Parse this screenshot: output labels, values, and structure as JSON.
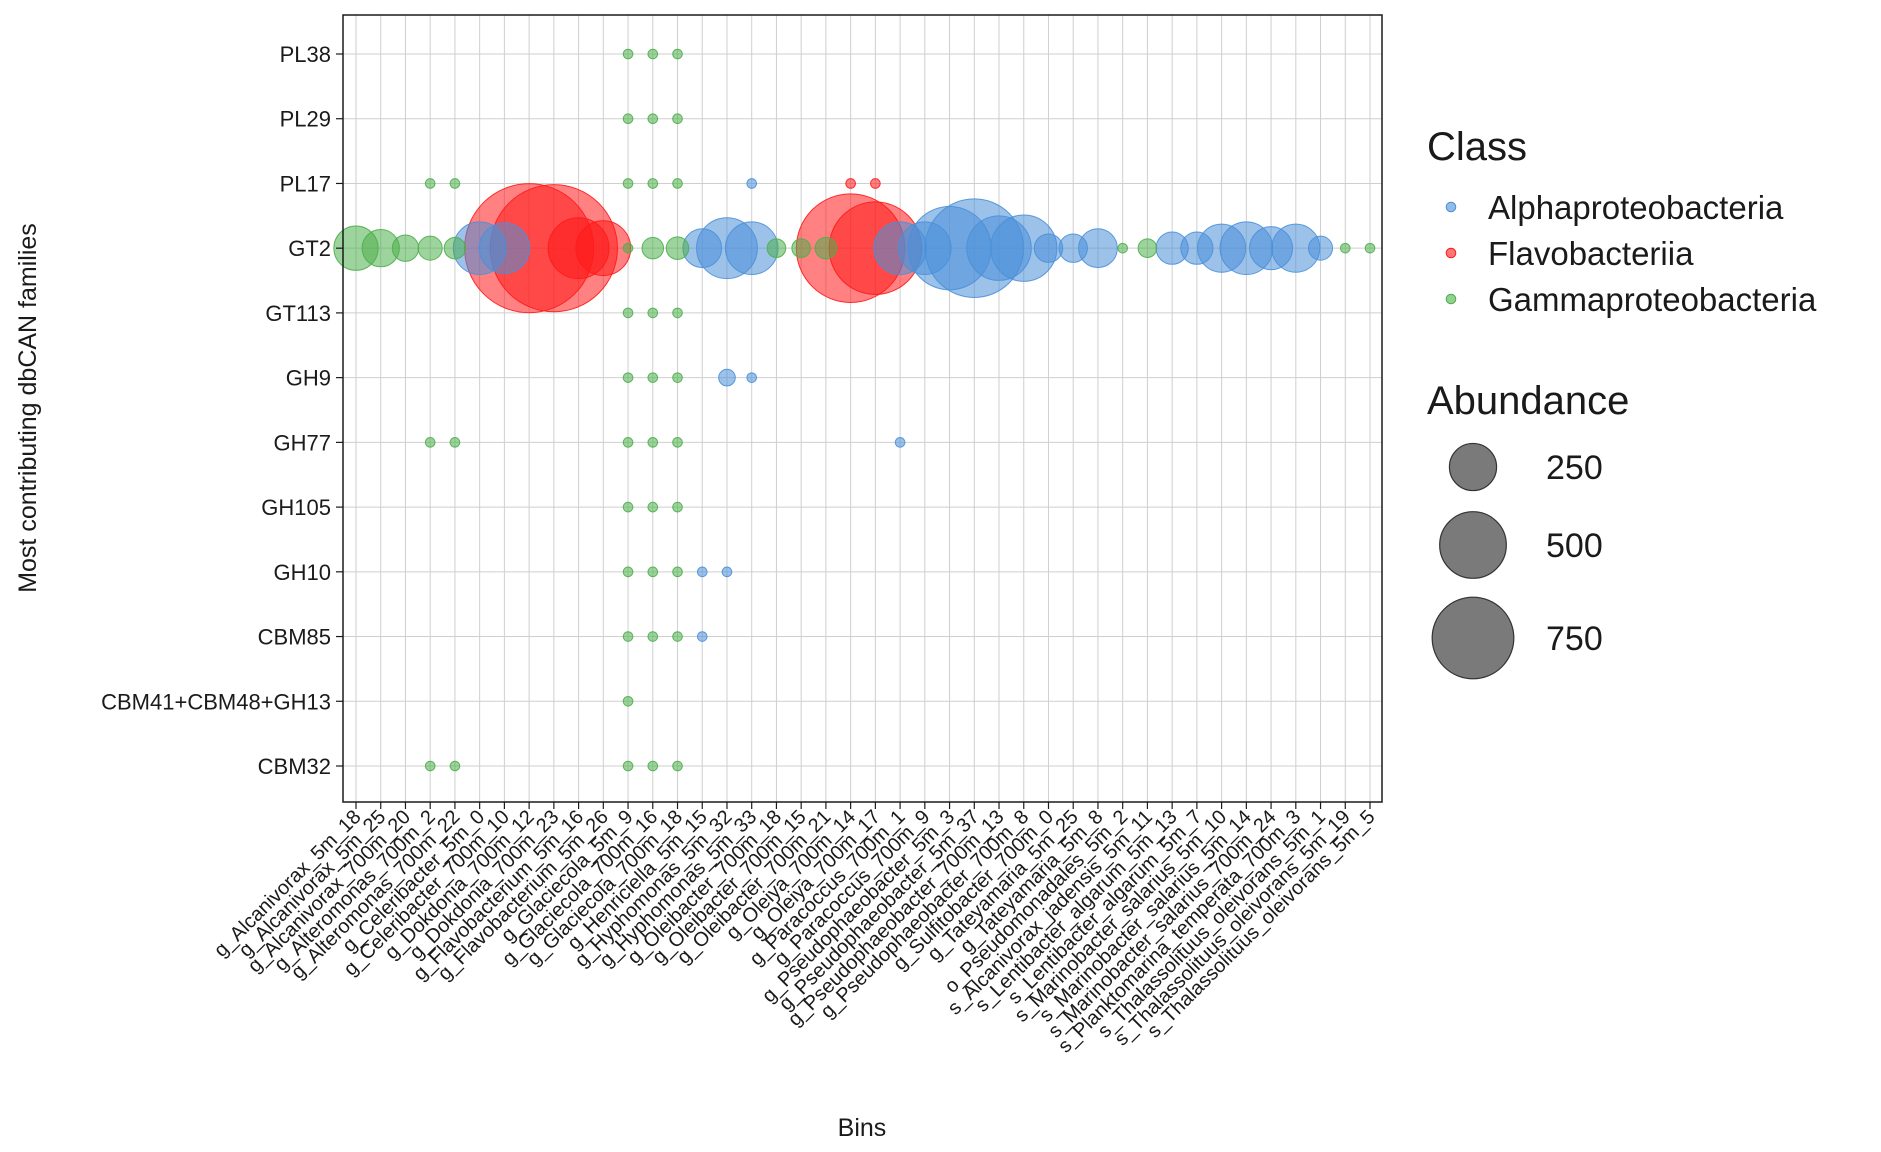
{
  "chart_data": {
    "type": "scatter",
    "title": "",
    "xlabel": "Bins",
    "ylabel": "Most contributing dbCAN families",
    "grid": true,
    "legend_position": "right",
    "categories": [
      "g_Alcanivorax_5m_18",
      "g_Alcanivorax_5m_25",
      "g_Alcanivorax_700m_20",
      "g_Alteromonas_700m_2",
      "g_Alteromonas_700m_22",
      "g_Celeribacter_5m_0",
      "g_Celeribacter_700m_10",
      "g_Dokdonia_700m_12",
      "g_Dokdonia_700m_23",
      "g_Flavobacterium_5m_16",
      "g_Flavobacterium_5m_26",
      "g_Glaciecola_5m_9",
      "g_Glaciecola_700m_16",
      "g_Glaciecola_700m_18",
      "g_Henriciella_5m_15",
      "g_Hyphomonas_5m_32",
      "g_Hyphomonas_5m_33",
      "g_Oleibacter_700m_18",
      "g_Oleibacter_700m_15",
      "g_Oleibacter_700m_21",
      "g_Oleiya_700m_14",
      "g_Oleiya_700m_17",
      "g_Paracoccus_700m_1",
      "g_Paracoccus_700m_9",
      "g_Pseudophaeobacter_5m_3",
      "g_Pseudophaeobacter_5m_37",
      "g_Pseudophaeobacter_700m_13",
      "g_Pseudophaeobacter_700m_8",
      "g_Sulfitobacter_700m_0",
      "g_Tateyamaria_5m_25",
      "g_Tateyamaria_5m_8",
      "o_Pseudomonadales_5m_2",
      "s_Alcanivorax_jadensis_5m_11",
      "s_Lentibacter_algarum_5m_13",
      "s_Lentibacter_algarum_5m_7",
      "s_Marinobacter_salarius_5m_10",
      "s_Marinobacter_salarius_5m_14",
      "s_Marinobacter_salarius_700m_24",
      "s_Planktomarina_temperata_700m_3",
      "s_Thalassolituus_oleivorans_5m_1",
      "s_Thalassolituus_oleivorans_5m_19",
      "s_Thalassolituus_oleivorans_5m_5"
    ],
    "x_tick_labels": [
      "g_Alcanivorax_5m_18",
      "g_Alcanivorax_5m_25",
      "g_Alcanivorax_700m_20",
      "g_Alteromonas_700m_2",
      "g_Alteromonas_700m_22",
      "g_Celeribacter_5m_0",
      "g_Celeribacter_700m_10",
      "g_Dokdonia_700m_12",
      "g_Dokdonia_700m_23",
      "g_Flavobacterium_5m_16",
      "g_Flavobacterium_5m_26",
      "g_Glaciecola_5m_9",
      "g_Glaciecola_700m_16",
      "g_Glaciecola_700m_18",
      "g_Henriciella_5m_15",
      "g_Hyphomonas_5m_32",
      "g_Hyphomonas_5m_33",
      "g_Oleibacter_700m_18",
      "g_Oleibacter_700m_15",
      "g_Oleibacter_700m_21",
      "g_Oleiya_700m_14",
      "g_Oleiya_700m_17",
      "g_Paracoccus_700m_1",
      "g_Paracoccus_700m_9",
      "g_Pseudophaeobacter_5m_3",
      "g_Pseudophaeobacter_5m_37",
      "g_Pseudophaeobacter_700m_13",
      "g_Pseudophaeobacter_700m_8",
      "g_Sulfitobacter_700m_0",
      "g_Tateyamaria_5m_25",
      "g_Tateyamaria_5m_8",
      "o_Pseudomonadales_5m_2",
      "s_Alcanivorax_jadensis_5m_11",
      "s_Lentibacter_algarum_5m_13",
      "s_Lentibacter_algarum_5m_7",
      "s_Marinobacter_salarius_5m_10",
      "s_Marinobacter_salarius_5m_14",
      "s_Marinobacter_salarius_700m_24",
      "s_Planktomarina_temperata_700m_3",
      "s_Thalassolituus_oleivorans_5m_1",
      "s_Thalassolituus_oleivorans_5m_19",
      "s_Thalassolituus_oleivorans_5m_5"
    ],
    "y_categories": [
      "PL38",
      "PL29",
      "PL17",
      "GT2",
      "GT113",
      "GH9",
      "GH77",
      "GH105",
      "GH10",
      "CBM85",
      "CBM41+CBM48+GH13",
      "CBM32"
    ],
    "legend": {
      "class_title": "Class",
      "classes": [
        {
          "name": "Alphaproteobacteria",
          "color": "#4a90d9"
        },
        {
          "name": "Flavobacteriia",
          "color": "#ff1a1a"
        },
        {
          "name": "Gammaproteobacteria",
          "color": "#4daf4a"
        }
      ],
      "size_title": "Abundance",
      "size_breaks": [
        250,
        500,
        750
      ],
      "size_color": "#555555"
    },
    "size_max_value": 800,
    "points": [
      {
        "x": 0,
        "y": "GT2",
        "class": "Gammaproteobacteria",
        "abundance": 85
      },
      {
        "x": 1,
        "y": "GT2",
        "class": "Gammaproteobacteria",
        "abundance": 60
      },
      {
        "x": 2,
        "y": "GT2",
        "class": "Gammaproteobacteria",
        "abundance": 30
      },
      {
        "x": 3,
        "y": "GT2",
        "class": "Gammaproteobacteria",
        "abundance": 25
      },
      {
        "x": 3,
        "y": "PL17",
        "class": "Gammaproteobacteria",
        "abundance": 4
      },
      {
        "x": 3,
        "y": "GH77",
        "class": "Gammaproteobacteria",
        "abundance": 4
      },
      {
        "x": 3,
        "y": "CBM32",
        "class": "Gammaproteobacteria",
        "abundance": 4
      },
      {
        "x": 4,
        "y": "GT2",
        "class": "Gammaproteobacteria",
        "abundance": 20
      },
      {
        "x": 4,
        "y": "PL17",
        "class": "Gammaproteobacteria",
        "abundance": 4
      },
      {
        "x": 4,
        "y": "GH77",
        "class": "Gammaproteobacteria",
        "abundance": 4
      },
      {
        "x": 4,
        "y": "CBM32",
        "class": "Gammaproteobacteria",
        "abundance": 4
      },
      {
        "x": 5,
        "y": "GT2",
        "class": "Alphaproteobacteria",
        "abundance": 120
      },
      {
        "x": 6,
        "y": "GT2",
        "class": "Alphaproteobacteria",
        "abundance": 110
      },
      {
        "x": 7,
        "y": "GT2",
        "class": "Flavobacteriia",
        "abundance": 720
      },
      {
        "x": 8,
        "y": "GT2",
        "class": "Flavobacteriia",
        "abundance": 700
      },
      {
        "x": 9,
        "y": "GT2",
        "class": "Flavobacteriia",
        "abundance": 160
      },
      {
        "x": 10,
        "y": "GT2",
        "class": "Flavobacteriia",
        "abundance": 130
      },
      {
        "x": 11,
        "y": "GT2",
        "class": "Gammaproteobacteria",
        "abundance": 4
      },
      {
        "x": 11,
        "y": "PL38",
        "class": "Gammaproteobacteria",
        "abundance": 4
      },
      {
        "x": 11,
        "y": "PL29",
        "class": "Gammaproteobacteria",
        "abundance": 4
      },
      {
        "x": 11,
        "y": "PL17",
        "class": "Gammaproteobacteria",
        "abundance": 4
      },
      {
        "x": 11,
        "y": "GT113",
        "class": "Gammaproteobacteria",
        "abundance": 4
      },
      {
        "x": 11,
        "y": "GH9",
        "class": "Gammaproteobacteria",
        "abundance": 4
      },
      {
        "x": 11,
        "y": "GH77",
        "class": "Gammaproteobacteria",
        "abundance": 4
      },
      {
        "x": 11,
        "y": "GH105",
        "class": "Gammaproteobacteria",
        "abundance": 4
      },
      {
        "x": 11,
        "y": "GH10",
        "class": "Gammaproteobacteria",
        "abundance": 4
      },
      {
        "x": 11,
        "y": "CBM85",
        "class": "Gammaproteobacteria",
        "abundance": 4
      },
      {
        "x": 11,
        "y": "CBM41+CBM48+GH13",
        "class": "Gammaproteobacteria",
        "abundance": 4
      },
      {
        "x": 11,
        "y": "CBM32",
        "class": "Gammaproteobacteria",
        "abundance": 4
      },
      {
        "x": 12,
        "y": "GT2",
        "class": "Gammaproteobacteria",
        "abundance": 20
      },
      {
        "x": 12,
        "y": "PL38",
        "class": "Gammaproteobacteria",
        "abundance": 4
      },
      {
        "x": 12,
        "y": "PL29",
        "class": "Gammaproteobacteria",
        "abundance": 4
      },
      {
        "x": 12,
        "y": "PL17",
        "class": "Gammaproteobacteria",
        "abundance": 4
      },
      {
        "x": 12,
        "y": "GT113",
        "class": "Gammaproteobacteria",
        "abundance": 4
      },
      {
        "x": 12,
        "y": "GH9",
        "class": "Gammaproteobacteria",
        "abundance": 4
      },
      {
        "x": 12,
        "y": "GH77",
        "class": "Gammaproteobacteria",
        "abundance": 4
      },
      {
        "x": 12,
        "y": "GH105",
        "class": "Gammaproteobacteria",
        "abundance": 4
      },
      {
        "x": 12,
        "y": "GH10",
        "class": "Gammaproteobacteria",
        "abundance": 4
      },
      {
        "x": 12,
        "y": "CBM85",
        "class": "Gammaproteobacteria",
        "abundance": 4
      },
      {
        "x": 12,
        "y": "CBM32",
        "class": "Gammaproteobacteria",
        "abundance": 4
      },
      {
        "x": 13,
        "y": "GT2",
        "class": "Gammaproteobacteria",
        "abundance": 22
      },
      {
        "x": 13,
        "y": "PL38",
        "class": "Gammaproteobacteria",
        "abundance": 4
      },
      {
        "x": 13,
        "y": "PL29",
        "class": "Gammaproteobacteria",
        "abundance": 4
      },
      {
        "x": 13,
        "y": "PL17",
        "class": "Gammaproteobacteria",
        "abundance": 4
      },
      {
        "x": 13,
        "y": "GT113",
        "class": "Gammaproteobacteria",
        "abundance": 4
      },
      {
        "x": 13,
        "y": "GH9",
        "class": "Gammaproteobacteria",
        "abundance": 4
      },
      {
        "x": 13,
        "y": "GH77",
        "class": "Gammaproteobacteria",
        "abundance": 4
      },
      {
        "x": 13,
        "y": "GH105",
        "class": "Gammaproteobacteria",
        "abundance": 4
      },
      {
        "x": 13,
        "y": "GH10",
        "class": "Gammaproteobacteria",
        "abundance": 4
      },
      {
        "x": 13,
        "y": "CBM85",
        "class": "Gammaproteobacteria",
        "abundance": 4
      },
      {
        "x": 13,
        "y": "CBM32",
        "class": "Gammaproteobacteria",
        "abundance": 4
      },
      {
        "x": 14,
        "y": "GT2",
        "class": "Alphaproteobacteria",
        "abundance": 65
      },
      {
        "x": 14,
        "y": "GH10",
        "class": "Alphaproteobacteria",
        "abundance": 4
      },
      {
        "x": 14,
        "y": "CBM85",
        "class": "Alphaproteobacteria",
        "abundance": 4
      },
      {
        "x": 15,
        "y": "GT2",
        "class": "Alphaproteobacteria",
        "abundance": 160
      },
      {
        "x": 15,
        "y": "GH9",
        "class": "Alphaproteobacteria",
        "abundance": 12
      },
      {
        "x": 15,
        "y": "GH10",
        "class": "Alphaproteobacteria",
        "abundance": 4
      },
      {
        "x": 16,
        "y": "GT2",
        "class": "Alphaproteobacteria",
        "abundance": 120
      },
      {
        "x": 16,
        "y": "PL17",
        "class": "Alphaproteobacteria",
        "abundance": 4
      },
      {
        "x": 16,
        "y": "GH9",
        "class": "Alphaproteobacteria",
        "abundance": 4
      },
      {
        "x": 17,
        "y": "GT2",
        "class": "Gammaproteobacteria",
        "abundance": 15
      },
      {
        "x": 18,
        "y": "GT2",
        "class": "Gammaproteobacteria",
        "abundance": 15
      },
      {
        "x": 19,
        "y": "GT2",
        "class": "Gammaproteobacteria",
        "abundance": 20
      },
      {
        "x": 20,
        "y": "GT2",
        "class": "Flavobacteriia",
        "abundance": 510
      },
      {
        "x": 20,
        "y": "PL17",
        "class": "Flavobacteriia",
        "abundance": 4
      },
      {
        "x": 21,
        "y": "GT2",
        "class": "Flavobacteriia",
        "abundance": 370
      },
      {
        "x": 21,
        "y": "PL17",
        "class": "Flavobacteriia",
        "abundance": 4
      },
      {
        "x": 22,
        "y": "GT2",
        "class": "Alphaproteobacteria",
        "abundance": 120
      },
      {
        "x": 22,
        "y": "GH77",
        "class": "Alphaproteobacteria",
        "abundance": 4
      },
      {
        "x": 23,
        "y": "GT2",
        "class": "Alphaproteobacteria",
        "abundance": 120
      },
      {
        "x": 24,
        "y": "GT2",
        "class": "Alphaproteobacteria",
        "abundance": 300
      },
      {
        "x": 25,
        "y": "GT2",
        "class": "Alphaproteobacteria",
        "abundance": 420
      },
      {
        "x": 26,
        "y": "GT2",
        "class": "Alphaproteobacteria",
        "abundance": 180
      },
      {
        "x": 27,
        "y": "GT2",
        "class": "Alphaproteobacteria",
        "abundance": 190
      },
      {
        "x": 28,
        "y": "GT2",
        "class": "Alphaproteobacteria",
        "abundance": 35
      },
      {
        "x": 29,
        "y": "GT2",
        "class": "Alphaproteobacteria",
        "abundance": 35
      },
      {
        "x": 30,
        "y": "GT2",
        "class": "Alphaproteobacteria",
        "abundance": 65
      },
      {
        "x": 31,
        "y": "GT2",
        "class": "Gammaproteobacteria",
        "abundance": 4
      },
      {
        "x": 32,
        "y": "GT2",
        "class": "Gammaproteobacteria",
        "abundance": 15
      },
      {
        "x": 33,
        "y": "GT2",
        "class": "Alphaproteobacteria",
        "abundance": 45
      },
      {
        "x": 34,
        "y": "GT2",
        "class": "Alphaproteobacteria",
        "abundance": 45
      },
      {
        "x": 35,
        "y": "GT2",
        "class": "Alphaproteobacteria",
        "abundance": 100
      },
      {
        "x": 36,
        "y": "GT2",
        "class": "Alphaproteobacteria",
        "abundance": 120
      },
      {
        "x": 37,
        "y": "GT2",
        "class": "Alphaproteobacteria",
        "abundance": 80
      },
      {
        "x": 38,
        "y": "GT2",
        "class": "Alphaproteobacteria",
        "abundance": 100
      },
      {
        "x": 39,
        "y": "GT2",
        "class": "Alphaproteobacteria",
        "abundance": 25
      },
      {
        "x": 40,
        "y": "GT2",
        "class": "Gammaproteobacteria",
        "abundance": 4
      },
      {
        "x": 41,
        "y": "GT2",
        "class": "Gammaproteobacteria",
        "abundance": 4
      }
    ]
  }
}
